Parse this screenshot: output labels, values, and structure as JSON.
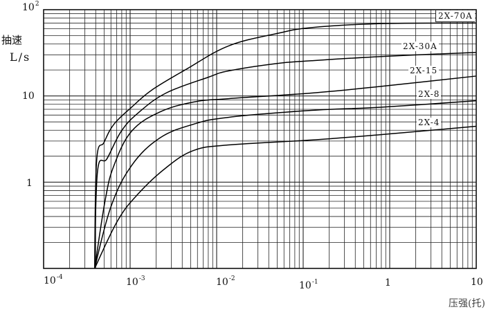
{
  "chart_data": {
    "type": "line",
    "xscale": "log",
    "yscale": "log",
    "xlim": [
      0.0001,
      10
    ],
    "ylim": [
      0.1,
      100
    ],
    "grid": true,
    "ylabel": "抽速",
    "ylabel_unit": "L/s",
    "xlabel": "压强(托)",
    "x_ticks": [
      {
        "base": "10",
        "exp": "-4"
      },
      {
        "base": "10",
        "exp": "-3"
      },
      {
        "base": "10",
        "exp": "-2"
      },
      {
        "base": "10",
        "exp": "-1"
      },
      {
        "base": "1",
        "exp": ""
      },
      {
        "base": "10",
        "exp": ""
      }
    ],
    "y_ticks": [
      {
        "base": "1",
        "exp": ""
      },
      {
        "base": "10",
        "exp": ""
      },
      {
        "base": "10",
        "exp": "2"
      }
    ],
    "series": [
      {
        "name": "2X-70A",
        "x": [
          0.00039,
          0.00041,
          0.0005,
          0.00065,
          0.00104,
          0.0018,
          0.0045,
          0.0137,
          0.05,
          0.125,
          0.79,
          10
        ],
        "y": [
          0.1,
          1.77,
          2.9,
          4.7,
          7.4,
          11.8,
          20.5,
          38,
          53,
          62,
          69,
          70
        ]
      },
      {
        "name": "2X-30A",
        "x": [
          0.00039,
          0.00042,
          0.00054,
          0.00079,
          0.00125,
          0.0026,
          0.0079,
          0.0137,
          0.05,
          0.125,
          0.79,
          10
        ],
        "y": [
          0.1,
          1.34,
          1.87,
          3.9,
          6.4,
          10.8,
          16.4,
          19.5,
          23.8,
          25.6,
          28.6,
          32
        ]
      },
      {
        "name": "2X-15",
        "x": [
          0.00039,
          0.000515,
          0.00065,
          0.00104,
          0.0022,
          0.0054,
          0.0137,
          0.125,
          0.79,
          10
        ],
        "y": [
          0.1,
          0.62,
          1.56,
          3.9,
          6.5,
          8.5,
          9.3,
          10.8,
          12.9,
          17
        ]
      },
      {
        "name": "2X-8",
        "x": [
          0.00039,
          0.0006,
          0.00104,
          0.0022,
          0.0054,
          0.0137,
          0.125,
          0.79,
          10
        ],
        "y": [
          0.1,
          0.52,
          1.56,
          3.25,
          4.7,
          5.65,
          6.8,
          7.4,
          8.8
        ]
      },
      {
        "name": "2X-4",
        "x": [
          0.00039,
          0.00072,
          0.00125,
          0.0026,
          0.0054,
          0.0137,
          0.125,
          0.79,
          10
        ],
        "y": [
          0.1,
          0.36,
          0.74,
          1.47,
          2.33,
          2.7,
          3.08,
          3.56,
          4.45
        ]
      }
    ]
  }
}
